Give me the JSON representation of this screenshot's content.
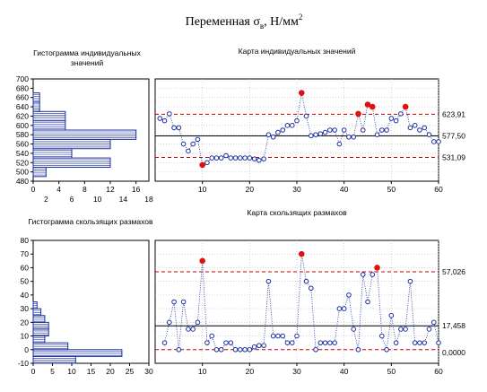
{
  "page": {
    "title_main": "Переменная σ",
    "title_sub": "в",
    "title_tail": ", Н/мм",
    "title_sup": "2"
  },
  "chart_data": [
    {
      "id": "hist_individual",
      "type": "bar",
      "orientation": "horizontal",
      "title": "Гистограмма индивидуальных значений",
      "title_lines": [
        "Гистограмма индивидуальных",
        "значений"
      ],
      "bins": [
        500,
        520,
        540,
        560,
        580,
        600,
        620,
        640,
        660,
        680
      ],
      "bin_width": 20,
      "counts": [
        2,
        12,
        6,
        12,
        16,
        5,
        5,
        1,
        1,
        0
      ],
      "y_ticks": [
        480,
        500,
        520,
        540,
        560,
        580,
        600,
        620,
        640,
        660,
        680,
        700
      ],
      "x_ticks_top": [
        0,
        4,
        8,
        12,
        16
      ],
      "x_ticks_bottom": [
        2,
        6,
        10,
        14,
        18
      ],
      "ylim": [
        480,
        700
      ],
      "xlim": [
        0,
        18
      ]
    },
    {
      "id": "chart_individual",
      "type": "line",
      "title": "Карта индивидуальных значений",
      "x": [
        1,
        2,
        3,
        4,
        5,
        6,
        7,
        8,
        9,
        10,
        11,
        12,
        13,
        14,
        15,
        16,
        17,
        18,
        19,
        20,
        21,
        22,
        23,
        24,
        25,
        26,
        27,
        28,
        29,
        30,
        31,
        32,
        33,
        34,
        35,
        36,
        37,
        38,
        39,
        40,
        41,
        42,
        43,
        44,
        45,
        46,
        47,
        48,
        49,
        50,
        51,
        52,
        53,
        54,
        55,
        56,
        57,
        58,
        59,
        60
      ],
      "values": [
        615,
        610,
        625,
        595,
        595,
        560,
        545,
        560,
        570,
        515,
        520,
        530,
        530,
        530,
        535,
        530,
        530,
        530,
        530,
        530,
        528,
        525,
        528,
        580,
        575,
        585,
        590,
        600,
        600,
        610,
        670,
        620,
        578,
        580,
        582,
        585,
        590,
        590,
        560,
        590,
        575,
        575,
        625,
        590,
        645,
        640,
        580,
        590,
        590,
        615,
        610,
        625,
        640,
        595,
        600,
        590,
        595,
        580,
        565,
        565
      ],
      "out_of_control": [
        10,
        31,
        43,
        45,
        46,
        53
      ],
      "control_limits": {
        "ucl": 623.91,
        "center": 577.5,
        "lcl": 531.09
      },
      "limit_labels": [
        "623,91",
        "577,50",
        "531,09"
      ],
      "x_ticks": [
        10,
        20,
        30,
        40,
        50,
        60
      ],
      "xlim": [
        0,
        60
      ],
      "ylim": [
        480,
        700
      ],
      "grid": true
    },
    {
      "id": "hist_moving_range",
      "type": "bar",
      "orientation": "horizontal",
      "title": "Гистограмма скользящих размахов",
      "bins": [
        -10,
        -5,
        0,
        5,
        10,
        15,
        20,
        25,
        30,
        35,
        40,
        45,
        50,
        55,
        60,
        65,
        70,
        75
      ],
      "bin_width": 5,
      "counts": [
        11,
        23,
        9,
        3,
        4,
        4,
        3,
        2,
        1,
        0,
        0,
        0,
        0,
        0,
        0,
        0,
        0,
        0
      ],
      "y_ticks": [
        -10,
        0,
        10,
        20,
        30,
        40,
        50,
        60,
        70,
        80
      ],
      "x_ticks": [
        0,
        5,
        10,
        15,
        20,
        25,
        30
      ],
      "ylim": [
        -10,
        80
      ],
      "xlim": [
        0,
        30
      ]
    },
    {
      "id": "chart_moving_range",
      "type": "line",
      "title": "Карта скользящих размахов",
      "x": [
        2,
        3,
        4,
        5,
        6,
        7,
        8,
        9,
        10,
        11,
        12,
        13,
        14,
        15,
        16,
        17,
        18,
        19,
        20,
        21,
        22,
        23,
        24,
        25,
        26,
        27,
        28,
        29,
        30,
        31,
        32,
        33,
        34,
        35,
        36,
        37,
        38,
        39,
        40,
        41,
        42,
        43,
        44,
        45,
        46,
        47,
        48,
        49,
        50,
        51,
        52,
        53,
        54,
        55,
        56,
        57,
        58,
        59,
        60
      ],
      "values": [
        5,
        20,
        35,
        0,
        35,
        15,
        15,
        20,
        65,
        5,
        10,
        0,
        0,
        5,
        5,
        0,
        0,
        0,
        0,
        2,
        3,
        3,
        50,
        10,
        10,
        10,
        5,
        5,
        10,
        70,
        50,
        45,
        0,
        5,
        5,
        5,
        5,
        30,
        30,
        40,
        15,
        0,
        55,
        35,
        55,
        60,
        10,
        0,
        25,
        5,
        15,
        15,
        50,
        5,
        5,
        5,
        15,
        20,
        5
      ],
      "out_of_control": [
        10,
        31,
        47
      ],
      "control_limits": {
        "ucl": 57.026,
        "center": 17.458,
        "lcl": 0.0
      },
      "limit_labels": [
        "57,026",
        "17,458",
        "0,0000"
      ],
      "x_ticks": [
        10,
        20,
        30,
        40,
        50,
        60
      ],
      "xlim": [
        0,
        60
      ],
      "ylim": [
        -10,
        80
      ],
      "grid": true
    }
  ]
}
